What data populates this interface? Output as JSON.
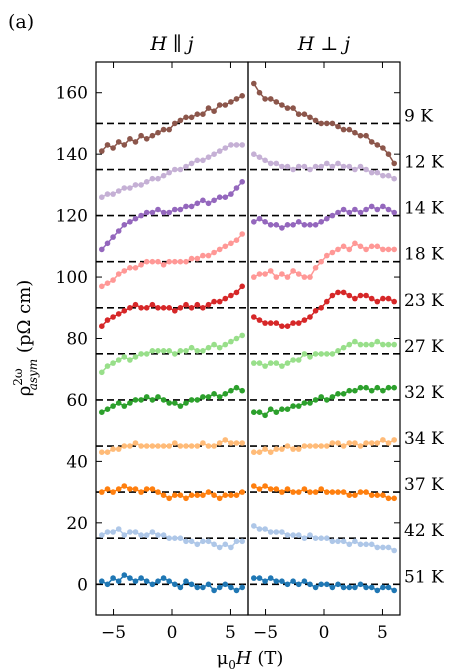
{
  "panel_label": "(a)",
  "chart_data": {
    "type": "scatter",
    "xlabel_base": "μ",
    "xlabel_sub": "0",
    "xlabel_var": "H",
    "xlabel_unit": " (T)",
    "ylabel_base": "ρ",
    "ylabel_sup": "2ω",
    "ylabel_sub": "asym",
    "ylabel_unit": " (pΩ cm)",
    "xlim": [
      -6.5,
      6.5
    ],
    "ylim": [
      -10,
      170
    ],
    "xticks": [
      -5,
      0,
      5
    ],
    "yticks": [
      0,
      20,
      40,
      60,
      80,
      100,
      120,
      140,
      160
    ],
    "panels": [
      {
        "title": "H ∥ j"
      },
      {
        "title": "H ⊥ j"
      }
    ],
    "series": [
      {
        "name": "51 K",
        "offset": 0,
        "color": "#1f77b4",
        "parallel": [
          1,
          0,
          2,
          1,
          3,
          2,
          1,
          2,
          1,
          0,
          1,
          2,
          1,
          0,
          -1,
          1,
          0,
          -1,
          -1,
          0,
          -2,
          -1,
          0,
          -1,
          -2,
          -1
        ],
        "perpendicular": [
          2,
          2,
          1,
          2,
          1,
          1,
          0,
          1,
          0,
          1,
          0,
          -1,
          0,
          0,
          -1,
          0,
          -1,
          -1,
          -1,
          0,
          -1,
          -1,
          -2,
          -1,
          -1,
          -2
        ]
      },
      {
        "name": "42 K",
        "offset": 15,
        "color": "#aec7e8",
        "parallel": [
          16,
          17,
          17,
          18,
          16,
          17,
          17,
          16,
          16,
          17,
          16,
          16,
          15,
          15,
          15,
          14,
          14,
          13,
          14,
          14,
          13,
          12,
          13,
          12,
          14,
          14
        ],
        "perpendicular": [
          19,
          18,
          18,
          17,
          17,
          17,
          16,
          16,
          16,
          15,
          16,
          15,
          15,
          15,
          14,
          14,
          14,
          13,
          14,
          13,
          13,
          13,
          12,
          12,
          12,
          11
        ]
      },
      {
        "name": "37 K",
        "offset": 30,
        "color": "#ff7f0e",
        "parallel": [
          30,
          31,
          30,
          31,
          32,
          31,
          31,
          30,
          31,
          31,
          30,
          29,
          28,
          29,
          29,
          28,
          29,
          29,
          29,
          30,
          29,
          28,
          29,
          29,
          29,
          30
        ],
        "perpendicular": [
          32,
          31,
          32,
          31,
          31,
          30,
          31,
          30,
          30,
          31,
          30,
          30,
          31,
          30,
          30,
          30,
          30,
          29,
          29,
          30,
          30,
          29,
          29,
          29,
          28,
          28
        ]
      },
      {
        "name": "34 K",
        "offset": 45,
        "color": "#ffbb78",
        "parallel": [
          43,
          43,
          44,
          44,
          45,
          45,
          46,
          45,
          45,
          45,
          45,
          45,
          45,
          46,
          45,
          45,
          45,
          45,
          46,
          45,
          45,
          46,
          47,
          46,
          46,
          46
        ],
        "perpendicular": [
          43,
          43,
          44,
          43,
          44,
          44,
          45,
          44,
          44,
          45,
          45,
          45,
          45,
          45,
          46,
          46,
          45,
          46,
          46,
          45,
          46,
          46,
          46,
          47,
          46,
          47
        ]
      },
      {
        "name": "32 K",
        "offset": 60,
        "color": "#2ca02c",
        "parallel": [
          56,
          57,
          58,
          59,
          58,
          59,
          60,
          60,
          61,
          60,
          61,
          60,
          59,
          59,
          58,
          59,
          60,
          60,
          61,
          61,
          62,
          61,
          62,
          63,
          64,
          63
        ],
        "perpendicular": [
          56,
          56,
          55,
          57,
          56,
          57,
          57,
          58,
          58,
          59,
          59,
          60,
          61,
          60,
          61,
          62,
          62,
          63,
          63,
          64,
          64,
          63,
          64,
          63,
          64,
          64
        ]
      },
      {
        "name": "27 K",
        "offset": 75,
        "color": "#98df8a",
        "parallel": [
          69,
          71,
          72,
          73,
          74,
          73,
          74,
          75,
          75,
          76,
          76,
          76,
          76,
          75,
          76,
          76,
          77,
          76,
          76,
          77,
          78,
          77,
          78,
          79,
          80,
          81
        ],
        "perpendicular": [
          72,
          72,
          71,
          72,
          72,
          71,
          72,
          73,
          73,
          75,
          74,
          75,
          75,
          75,
          75,
          76,
          77,
          78,
          79,
          78,
          78,
          78,
          79,
          78,
          78,
          78
        ]
      },
      {
        "name": "23 K",
        "offset": 90,
        "color": "#d62728",
        "parallel": [
          84,
          86,
          87,
          88,
          89,
          90,
          91,
          90,
          90,
          91,
          90,
          90,
          90,
          89,
          90,
          91,
          90,
          91,
          90,
          91,
          92,
          92,
          93,
          94,
          95,
          97
        ],
        "perpendicular": [
          87,
          86,
          85,
          85,
          85,
          84,
          84,
          85,
          85,
          86,
          87,
          89,
          90,
          92,
          94,
          95,
          95,
          94,
          93,
          94,
          94,
          93,
          92,
          93,
          93,
          92
        ]
      },
      {
        "name": "18 K",
        "offset": 105,
        "color": "#ff9896",
        "parallel": [
          97,
          98,
          99,
          101,
          102,
          103,
          103,
          104,
          105,
          105,
          105,
          104,
          105,
          105,
          105,
          105,
          106,
          106,
          107,
          107,
          108,
          109,
          110,
          111,
          112,
          114
        ],
        "perpendicular": [
          100,
          101,
          101,
          102,
          100,
          101,
          100,
          102,
          101,
          100,
          100,
          103,
          105,
          107,
          108,
          109,
          110,
          109,
          111,
          110,
          109,
          110,
          110,
          109,
          109,
          109
        ]
      },
      {
        "name": "14 K",
        "offset": 120,
        "color": "#9467bd",
        "parallel": [
          109,
          111,
          113,
          115,
          117,
          118,
          119,
          120,
          121,
          121,
          122,
          121,
          121,
          122,
          122,
          123,
          123,
          124,
          125,
          124,
          125,
          126,
          126,
          127,
          129,
          131
        ],
        "perpendicular": [
          118,
          119,
          118,
          117,
          117,
          116,
          117,
          117,
          118,
          117,
          117,
          117,
          118,
          119,
          120,
          121,
          122,
          121,
          122,
          121,
          122,
          123,
          122,
          123,
          122,
          121
        ]
      },
      {
        "name": "12 K",
        "offset": 135,
        "color": "#c5b0d5",
        "parallel": [
          126,
          127,
          127,
          128,
          129,
          129,
          130,
          130,
          131,
          132,
          132,
          133,
          134,
          135,
          135,
          136,
          137,
          138,
          138,
          139,
          140,
          141,
          142,
          143,
          143,
          143
        ],
        "perpendicular": [
          140,
          139,
          138,
          137,
          137,
          136,
          136,
          135,
          136,
          136,
          135,
          136,
          136,
          137,
          136,
          137,
          136,
          136,
          135,
          136,
          135,
          134,
          134,
          133,
          133,
          132
        ]
      },
      {
        "name": "9 K",
        "offset": 150,
        "color": "#8c564b",
        "parallel": [
          141,
          143,
          142,
          144,
          143,
          145,
          144,
          146,
          145,
          146,
          147,
          148,
          148,
          150,
          151,
          152,
          152,
          153,
          153,
          155,
          154,
          156,
          156,
          157,
          158,
          159
        ],
        "perpendicular": [
          163,
          160,
          158,
          158,
          157,
          156,
          155,
          155,
          153,
          153,
          152,
          151,
          150,
          150,
          150,
          149,
          148,
          148,
          147,
          146,
          146,
          144,
          143,
          142,
          140,
          137
        ]
      }
    ]
  }
}
